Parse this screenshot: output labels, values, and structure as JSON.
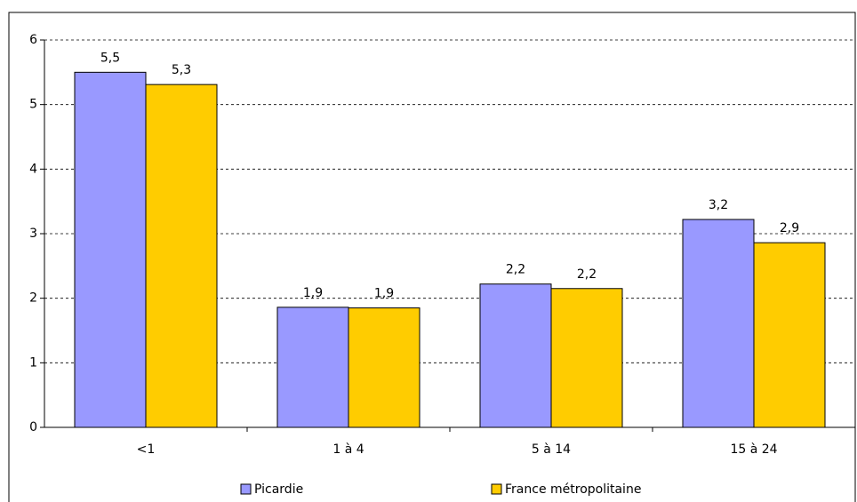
{
  "chart_data": {
    "type": "bar",
    "categories": [
      "<1",
      "1 à 4",
      "5 à 14",
      "15 à 24"
    ],
    "series": [
      {
        "name": "Picardie",
        "color": "#9999ff",
        "values": [
          5.5,
          1.86,
          2.22,
          3.22
        ],
        "value_labels": [
          "5,5",
          "1,9",
          "2,2",
          "3,2"
        ]
      },
      {
        "name": "France métropolitaine",
        "color": "#ffcc00",
        "values": [
          5.31,
          1.85,
          2.15,
          2.86
        ],
        "value_labels": [
          "5,3",
          "1,9",
          "2,2",
          "2,9"
        ]
      }
    ],
    "ylim": [
      0,
      6
    ],
    "yticks": [
      0,
      1,
      2,
      3,
      4,
      5,
      6
    ],
    "grid": true,
    "legend": "bottom"
  }
}
